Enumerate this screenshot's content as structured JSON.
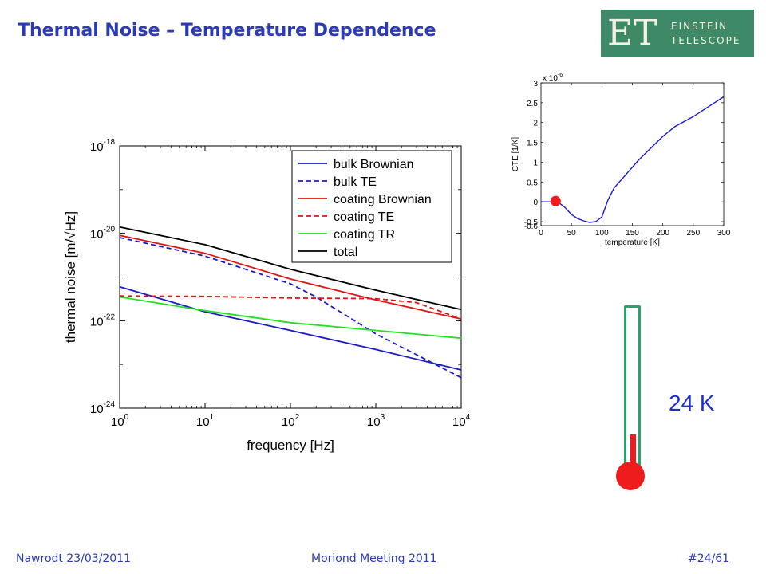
{
  "slide": {
    "title": "Thermal Noise – Temperature Dependence",
    "logo": {
      "mark": "ET",
      "line1": "EINSTEIN",
      "line2": "TELESCOPE"
    },
    "temperature_label": "24 K",
    "footer": {
      "left": "Nawrodt 23/03/2011",
      "center": "Moriond Meeting 2011",
      "right": "#24/61"
    }
  },
  "colors": {
    "title": "#2a3bb5",
    "logo_bg": "#3f8a66",
    "blue": "#1a1ac8",
    "red": "#e01414",
    "green": "#22e022",
    "black": "#000000",
    "marker": "#ee1c1c",
    "thermometer": "#2aa26b"
  },
  "chart_data": [
    {
      "type": "line",
      "xlabel": "frequency [Hz]",
      "ylabel": "thermal noise [m/√Hz]",
      "xscale": "log",
      "yscale": "log",
      "xlim": [
        1,
        10000
      ],
      "ylim": [
        1e-24,
        1e-18
      ],
      "xticks": [
        {
          "base": "10",
          "exp": "0",
          "value": 1
        },
        {
          "base": "10",
          "exp": "1",
          "value": 10
        },
        {
          "base": "10",
          "exp": "2",
          "value": 100
        },
        {
          "base": "10",
          "exp": "3",
          "value": 1000
        },
        {
          "base": "10",
          "exp": "4",
          "value": 10000
        }
      ],
      "yticks": [
        {
          "base": "10",
          "exp": "-24",
          "value": 1e-24
        },
        {
          "base": "10",
          "exp": "-22",
          "value": 1e-22
        },
        {
          "base": "10",
          "exp": "-20",
          "value": 1e-20
        },
        {
          "base": "10",
          "exp": "-18",
          "value": 1e-18
        }
      ],
      "legend": "top-right",
      "series": [
        {
          "name": "bulk Brownian",
          "color": "#1a1ac8",
          "dash": "solid",
          "x": [
            1,
            10,
            100,
            1000,
            10000
          ],
          "y": [
            6e-22,
            1.6e-22,
            6e-23,
            2.2e-23,
            7.5e-24
          ]
        },
        {
          "name": "bulk TE",
          "color": "#1a1ac8",
          "dash": "dashed",
          "x": [
            1,
            10,
            100,
            200,
            1000,
            10000
          ],
          "y": [
            8e-21,
            3e-21,
            7e-22,
            3.5e-22,
            5e-23,
            5e-24
          ]
        },
        {
          "name": "coating Brownian",
          "color": "#e01414",
          "dash": "solid",
          "x": [
            1,
            10,
            100,
            1000,
            10000
          ],
          "y": [
            9e-21,
            3.5e-21,
            9e-22,
            3e-22,
            1.1e-22
          ]
        },
        {
          "name": "coating TE",
          "color": "#e01414",
          "dash": "dashed",
          "x": [
            1,
            10,
            100,
            1000,
            3000,
            10000
          ],
          "y": [
            3.7e-22,
            3.6e-22,
            3.3e-22,
            3.2e-22,
            2.6e-22,
            1.1e-22
          ]
        },
        {
          "name": "coating TR",
          "color": "#22e022",
          "dash": "solid",
          "x": [
            1,
            10,
            100,
            1000,
            10000
          ],
          "y": [
            3.5e-22,
            1.7e-22,
            9e-23,
            6e-23,
            4e-23
          ]
        },
        {
          "name": "total",
          "color": "#000000",
          "dash": "solid",
          "x": [
            1,
            10,
            100,
            1000,
            10000
          ],
          "y": [
            1.4e-20,
            5.5e-21,
            1.5e-21,
            5e-22,
            1.8e-22
          ]
        }
      ]
    },
    {
      "type": "line",
      "xlabel": "temperature [K]",
      "ylabel": "CTE [1/K]",
      "exponent_label": {
        "base": "x 10",
        "exp": "-6"
      },
      "xlim": [
        0,
        300
      ],
      "ylim": [
        -0.6,
        3
      ],
      "xticks": [
        "0",
        "50",
        "100",
        "150",
        "200",
        "250",
        "300"
      ],
      "yticks": [
        "-0.5",
        "0",
        "0.5",
        "1",
        "1.5",
        "2",
        "2.5",
        "3"
      ],
      "series": [
        {
          "color": "#1a1ac8",
          "x": [
            0,
            10,
            20,
            30,
            40,
            50,
            60,
            70,
            80,
            90,
            100,
            110,
            120,
            140,
            160,
            180,
            200,
            220,
            250,
            280,
            300
          ],
          "y": [
            0,
            0,
            0,
            -0.03,
            -0.15,
            -0.32,
            -0.42,
            -0.48,
            -0.52,
            -0.5,
            -0.38,
            0.05,
            0.35,
            0.7,
            1.05,
            1.35,
            1.65,
            1.9,
            2.15,
            2.45,
            2.65
          ]
        }
      ],
      "marker": {
        "x": 24,
        "y": 0.02
      }
    }
  ]
}
